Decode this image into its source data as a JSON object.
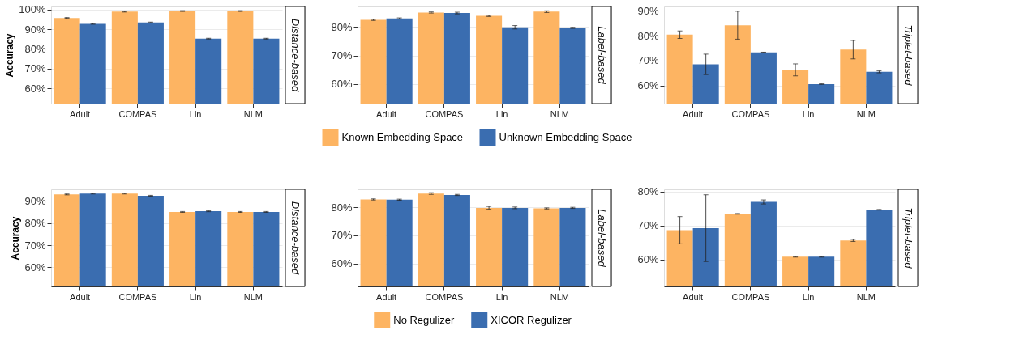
{
  "chart_data": [
    {
      "type": "bar",
      "annotations": [
        "Distance-based"
      ],
      "ylabel": "Accuracy",
      "categories": [
        "Adult",
        "COMPAS",
        "Lin",
        "NLM"
      ],
      "ylim": [
        52.3,
        101.5
      ],
      "yticks": [
        {
          "value": 60,
          "label": "60%"
        },
        {
          "value": 70,
          "label": "70%"
        },
        {
          "value": 80,
          "label": "80%"
        },
        {
          "value": 90,
          "label": "90%"
        },
        {
          "value": 100,
          "label": "100%"
        }
      ],
      "grid": "y",
      "legend": "bottom",
      "series": [
        {
          "name": "Known Embedding Space",
          "color": "#fdb462",
          "values": [
            95.7,
            98.9,
            99.2,
            99.2
          ],
          "errors": [
            0.2,
            0.2,
            0.2,
            0.2
          ]
        },
        {
          "name": "Unknown Embedding Space",
          "color": "#3a6db0",
          "values": [
            92.7,
            93.4,
            85.2,
            85.2
          ],
          "errors": [
            0.2,
            0.2,
            0.2,
            0.2
          ]
        }
      ]
    },
    {
      "type": "bar",
      "annotations": [
        "Label-based"
      ],
      "categories": [
        "Adult",
        "COMPAS",
        "Lin",
        "NLM"
      ],
      "ylim": [
        53.1,
        87.2
      ],
      "yticks": [
        {
          "value": 60,
          "label": "60%"
        },
        {
          "value": 70,
          "label": "70%"
        },
        {
          "value": 80,
          "label": "80%"
        }
      ],
      "grid": "y",
      "legend": "bottom",
      "series": [
        {
          "name": "Known Embedding Space",
          "color": "#fdb462",
          "values": [
            82.5,
            85.1,
            83.9,
            85.4
          ],
          "errors": [
            0.2,
            0.2,
            0.2,
            0.3
          ]
        },
        {
          "name": "Unknown Embedding Space",
          "color": "#3a6db0",
          "values": [
            83.0,
            84.9,
            79.9,
            79.7
          ],
          "errors": [
            0.2,
            0.3,
            0.6,
            0.2
          ]
        }
      ]
    },
    {
      "type": "bar",
      "annotations": [
        "Triplet-based"
      ],
      "categories": [
        "Adult",
        "COMPAS",
        "Lin",
        "NLM"
      ],
      "ylim": [
        52.8,
        91.7
      ],
      "yticks": [
        {
          "value": 60,
          "label": "60%"
        },
        {
          "value": 70,
          "label": "70%"
        },
        {
          "value": 80,
          "label": "80%"
        },
        {
          "value": 90,
          "label": "90%"
        }
      ],
      "grid": "y",
      "legend": "bottom",
      "series": [
        {
          "name": "Known Embedding Space",
          "color": "#fdb462",
          "values": [
            80.4,
            84.2,
            66.3,
            74.4
          ],
          "errors": [
            1.5,
            5.6,
            2.4,
            3.7
          ]
        },
        {
          "name": "Unknown Embedding Space",
          "color": "#3a6db0",
          "values": [
            68.5,
            73.3,
            60.6,
            65.5
          ],
          "errors": [
            4.1,
            0.1,
            0.1,
            0.4
          ]
        }
      ]
    },
    {
      "type": "bar",
      "annotations": [
        "Distance-based"
      ],
      "ylabel": "Accuracy",
      "categories": [
        "Adult",
        "COMPAS",
        "Lin",
        "NLM"
      ],
      "ylim": [
        51.4,
        95.2
      ],
      "yticks": [
        {
          "value": 60,
          "label": "60%"
        },
        {
          "value": 70,
          "label": "70%"
        },
        {
          "value": 80,
          "label": "80%"
        },
        {
          "value": 90,
          "label": "90%"
        }
      ],
      "grid": "y",
      "legend": "bottom",
      "series": [
        {
          "name": "No Regulizer",
          "color": "#fdb462",
          "values": [
            92.9,
            93.3,
            85.0,
            85.0
          ],
          "errors": [
            0.2,
            0.2,
            0.2,
            0.2
          ]
        },
        {
          "name": "XICOR Regulizer",
          "color": "#3a6db0",
          "values": [
            93.3,
            92.3,
            85.3,
            85.0
          ],
          "errors": [
            0.2,
            0.2,
            0.2,
            0.2
          ]
        }
      ]
    },
    {
      "type": "bar",
      "annotations": [
        "Label-based"
      ],
      "categories": [
        "Adult",
        "COMPAS",
        "Lin",
        "NLM"
      ],
      "ylim": [
        51.8,
        86.4
      ],
      "yticks": [
        {
          "value": 60,
          "label": "60%"
        },
        {
          "value": 70,
          "label": "70%"
        },
        {
          "value": 80,
          "label": "80%"
        }
      ],
      "grid": "y",
      "legend": "bottom",
      "series": [
        {
          "name": "No Regulizer",
          "color": "#fdb462",
          "values": [
            82.8,
            84.9,
            79.8,
            79.6
          ],
          "errors": [
            0.2,
            0.3,
            0.5,
            0.2
          ]
        },
        {
          "name": "XICOR Regulizer",
          "color": "#3a6db0",
          "values": [
            82.7,
            84.4,
            79.8,
            79.8
          ],
          "errors": [
            0.2,
            0.2,
            0.3,
            0.2
          ]
        }
      ]
    },
    {
      "type": "bar",
      "annotations": [
        "Triplet-based"
      ],
      "categories": [
        "Adult",
        "COMPAS",
        "Lin",
        "NLM"
      ],
      "ylim": [
        52.1,
        80.6
      ],
      "yticks": [
        {
          "value": 60,
          "label": "60%"
        },
        {
          "value": 70,
          "label": "70%"
        },
        {
          "value": 80,
          "label": "80%"
        }
      ],
      "grid": "y",
      "legend": "bottom",
      "series": [
        {
          "name": "No Regulizer",
          "color": "#fdb462",
          "values": [
            68.6,
            73.4,
            60.8,
            65.6
          ],
          "errors": [
            4.0,
            0.1,
            0.1,
            0.3
          ]
        },
        {
          "name": "XICOR Regulizer",
          "color": "#3a6db0",
          "values": [
            69.2,
            76.9,
            60.8,
            74.6
          ],
          "errors": [
            9.8,
            0.6,
            0.1,
            0.1
          ]
        }
      ]
    }
  ]
}
